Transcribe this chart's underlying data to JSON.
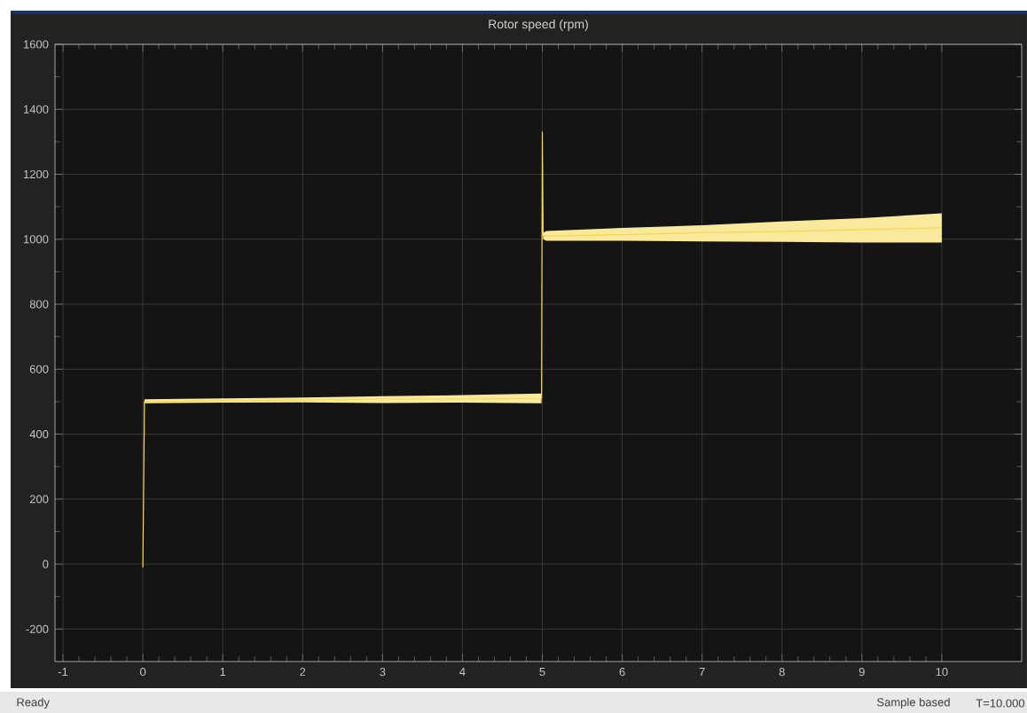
{
  "chart_data": {
    "type": "line",
    "title": "Rotor speed (rpm)",
    "xlim": [
      -1.1,
      11
    ],
    "ylim": [
      -300,
      1600
    ],
    "xticks": [
      -1,
      0,
      1,
      2,
      3,
      4,
      5,
      6,
      7,
      8,
      9,
      10
    ],
    "yticks": [
      -200,
      0,
      200,
      400,
      600,
      800,
      1000,
      1200,
      1400,
      1600
    ],
    "grid": true,
    "marker": "none",
    "line_style": "solid",
    "series": [
      {
        "color": "#f5d84e",
        "x": [
          0,
          0.02,
          1,
          2,
          3,
          4,
          4.99,
          5,
          5.01,
          5.05,
          6,
          7,
          8,
          9,
          10
        ],
        "values": [
          -10,
          500,
          503,
          505,
          508,
          508,
          510,
          1330,
          1010,
          1010,
          1014,
          1020,
          1024,
          1030,
          1035
        ],
        "lower": [
          -10,
          495,
          497,
          498,
          496,
          497,
          495,
          1330,
          1000,
          995,
          995,
          993,
          992,
          990,
          990
        ],
        "upper": [
          -10,
          507,
          510,
          513,
          517,
          520,
          525,
          1330,
          1020,
          1025,
          1035,
          1043,
          1055,
          1065,
          1080
        ]
      }
    ],
    "annotations": [
      "Ready",
      "Sample based",
      "T=10.000"
    ]
  }
}
